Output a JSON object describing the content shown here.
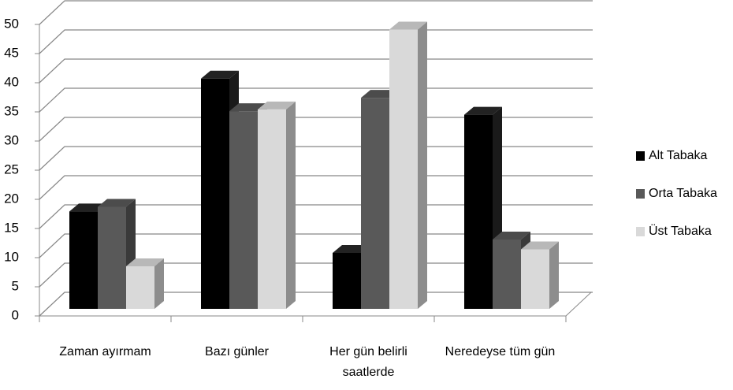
{
  "chart_data": {
    "type": "bar3d",
    "categories": [
      "Zaman ayırmam",
      "Bazı günler",
      "Her gün belirli saatlerde",
      "Neredeyse tüm gün"
    ],
    "series": [
      {
        "name": "Alt Tabaka",
        "color": "#000000",
        "values": [
          16.7,
          39.5,
          9.6,
          33.3
        ]
      },
      {
        "name": "Orta Tabaka",
        "color": "#595959",
        "values": [
          17.5,
          33.9,
          36.2,
          11.9
        ]
      },
      {
        "name": "Üst Tabaka",
        "color": "#d9d9d9",
        "values": [
          7.3,
          34.2,
          47.9,
          10.2
        ]
      }
    ],
    "ylim": [
      0,
      50
    ],
    "yticks": [
      0,
      5,
      10,
      15,
      20,
      25,
      30,
      35,
      40,
      45,
      50
    ],
    "grid": true,
    "legend": "right"
  }
}
